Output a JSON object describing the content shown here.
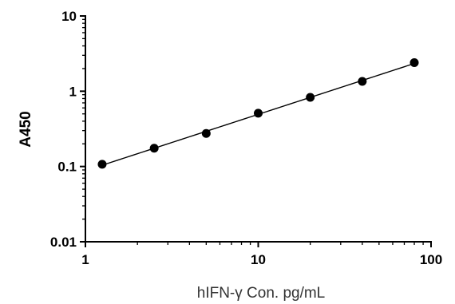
{
  "chart_data": {
    "type": "scatter",
    "title": "",
    "xlabel": "hIFN-γ Con. pg/mL",
    "ylabel": "A450",
    "x_scale": "log",
    "y_scale": "log",
    "xlim": [
      1,
      100
    ],
    "ylim": [
      0.01,
      10
    ],
    "x_ticks": [
      {
        "value": 1,
        "label": "1"
      },
      {
        "value": 10,
        "label": "10"
      },
      {
        "value": 100,
        "label": "100"
      }
    ],
    "y_ticks": [
      {
        "value": 0.01,
        "label": "0.01"
      },
      {
        "value": 0.1,
        "label": "0.1"
      },
      {
        "value": 1,
        "label": "1"
      },
      {
        "value": 10,
        "label": "10"
      }
    ],
    "grid": false,
    "series": [
      {
        "x": [
          1.25,
          2.5,
          5,
          10,
          20,
          40,
          80
        ],
        "y": [
          0.107,
          0.175,
          0.275,
          0.51,
          0.83,
          1.35,
          2.4
        ],
        "marker": "circle",
        "fit_line": true,
        "color": "#000000"
      }
    ]
  }
}
